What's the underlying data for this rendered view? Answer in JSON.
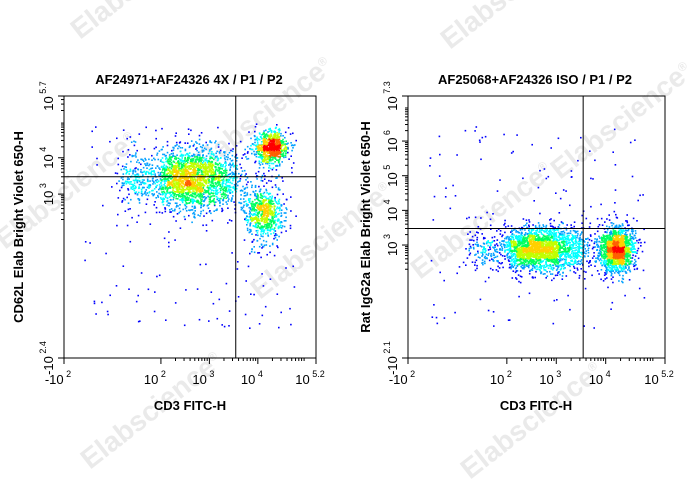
{
  "watermark": {
    "text": "Elabscience",
    "symbol": "®"
  },
  "chart_data": [
    {
      "type": "scatter",
      "title": "AF24971+AF24326 4X / P1 / P2",
      "xlabel": "CD3 FITC-H",
      "ylabel": "CD62L Elab Bright Violet 650-H",
      "x_scale": "biexponential",
      "y_scale": "biexponential",
      "xlim": [
        -100,
        158489
      ],
      "ylim": [
        -251,
        501187
      ],
      "x_ticks": [
        {
          "base": "-10",
          "exp": "2",
          "value": -100
        },
        {
          "base": "10",
          "exp": "2",
          "value": 100
        },
        {
          "base": "10",
          "exp": "3",
          "value": 1000
        },
        {
          "base": "10",
          "exp": "4",
          "value": 10000
        },
        {
          "base": "10",
          "exp": "5.2",
          "value": 158489
        }
      ],
      "y_ticks": [
        {
          "base": "-10",
          "exp": "2.4",
          "value": -251
        },
        {
          "base": "10",
          "exp": "3",
          "value": 1000
        },
        {
          "base": "10",
          "exp": "4",
          "value": 10000
        },
        {
          "base": "10",
          "exp": "5.7",
          "value": 501187
        }
      ],
      "quadrant_gate": {
        "x": 3500,
        "y": 3000
      },
      "populations": [
        {
          "name": "",
          "x_center": 400,
          "y_center": 2800,
          "x_spread_decades": 0.55,
          "y_spread_decades": 0.42,
          "share": 0.62
        },
        {
          "name": "",
          "x_center": 18000,
          "y_center": 20000,
          "x_spread_decades": 0.18,
          "y_spread_decades": 0.22,
          "share": 0.2
        },
        {
          "name": "",
          "x_center": 13000,
          "y_center": 300,
          "x_spread_decades": 0.2,
          "y_spread_decades": 0.35,
          "share": 0.18
        }
      ],
      "colormap": [
        "#0000ff",
        "#00a0ff",
        "#00ffff",
        "#00ff60",
        "#c0ff00",
        "#ffd000",
        "#ff6000",
        "#ff0000"
      ]
    },
    {
      "type": "scatter",
      "title": "AF25068+AF24326 ISO / P1 / P2",
      "xlabel": "CD3 FITC-H",
      "ylabel": "Rat IgG2a Elab Bright Violet 650-H",
      "x_scale": "biexponential",
      "y_scale": "biexponential",
      "xlim": [
        -100,
        158489
      ],
      "ylim": [
        -126,
        19952623
      ],
      "x_ticks": [
        {
          "base": "-10",
          "exp": "2",
          "value": -100
        },
        {
          "base": "10",
          "exp": "2",
          "value": 100
        },
        {
          "base": "10",
          "exp": "3",
          "value": 1000
        },
        {
          "base": "10",
          "exp": "4",
          "value": 10000
        },
        {
          "base": "10",
          "exp": "5.2",
          "value": 158489
        }
      ],
      "y_ticks": [
        {
          "base": "-10",
          "exp": "2.1",
          "value": -126
        },
        {
          "base": "10",
          "exp": "3",
          "value": 1000
        },
        {
          "base": "10",
          "exp": "4",
          "value": 10000
        },
        {
          "base": "10",
          "exp": "5",
          "value": 100000
        },
        {
          "base": "10",
          "exp": "6",
          "value": 1000000
        },
        {
          "base": "10",
          "exp": "7.3",
          "value": 19952623
        }
      ],
      "quadrant_gate": {
        "x": 3500,
        "y": 3000
      },
      "populations": [
        {
          "name": "",
          "x_center": 450,
          "y_center": 800,
          "x_spread_decades": 0.5,
          "y_spread_decades": 0.32,
          "share": 0.62
        },
        {
          "name": "",
          "x_center": 16000,
          "y_center": 800,
          "x_spread_decades": 0.17,
          "y_spread_decades": 0.32,
          "share": 0.38
        }
      ],
      "colormap": [
        "#0000ff",
        "#00a0ff",
        "#00ffff",
        "#00ff60",
        "#c0ff00",
        "#ffd000",
        "#ff6000",
        "#ff0000"
      ]
    }
  ]
}
